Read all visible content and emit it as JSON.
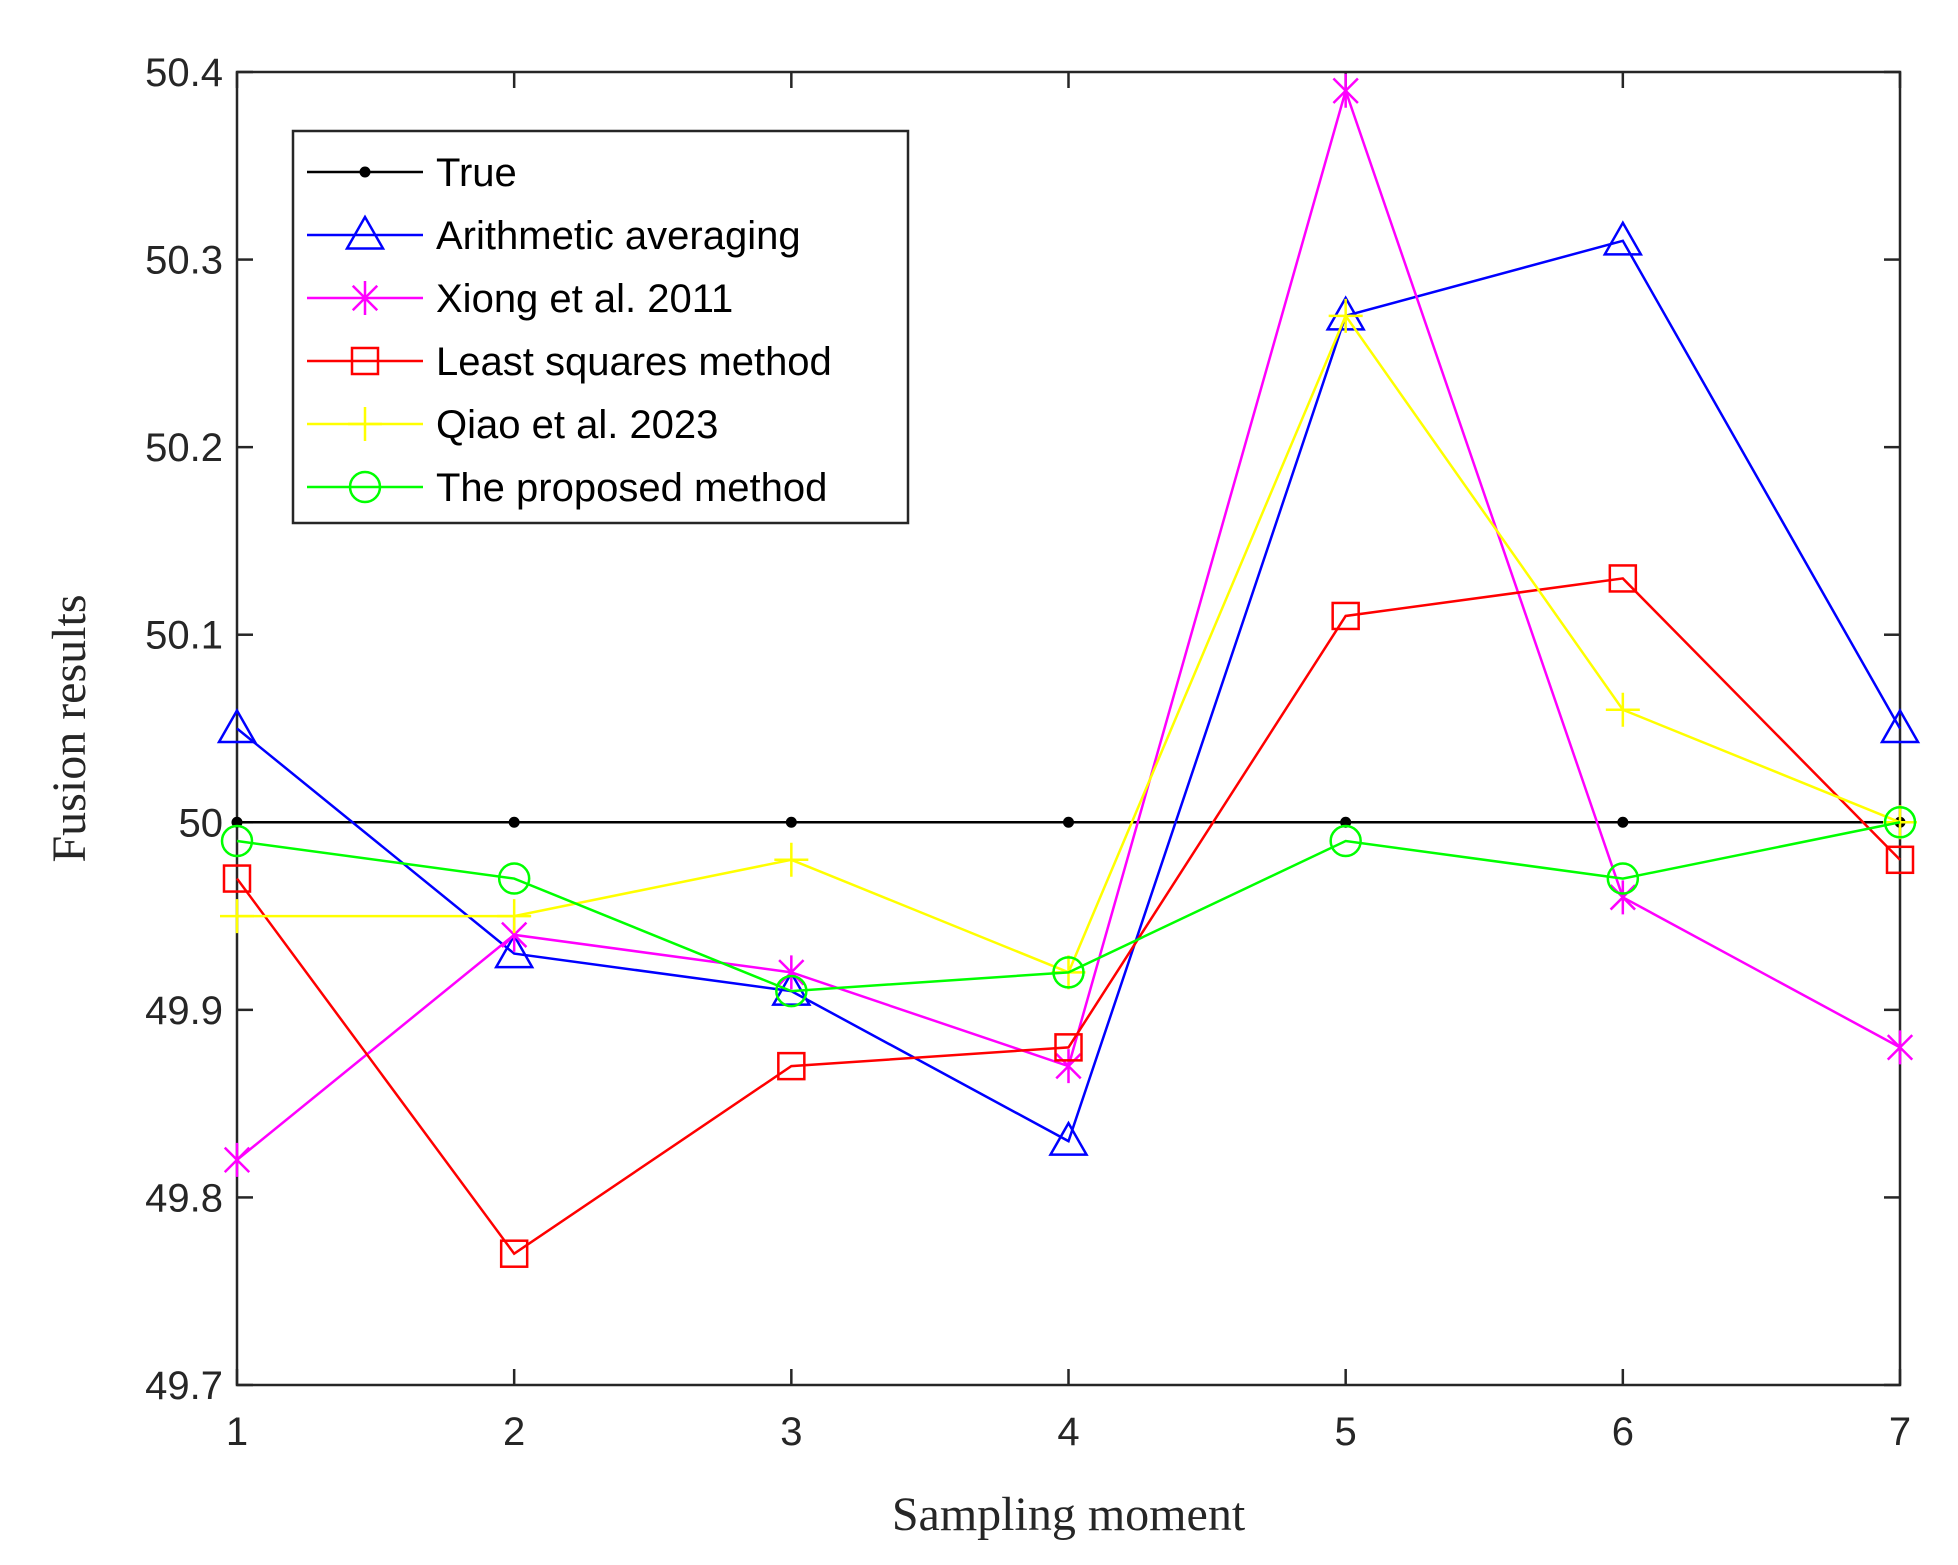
{
  "chart_data": {
    "type": "line",
    "title": "",
    "xlabel": "Sampling moment",
    "ylabel": "Fusion results",
    "x": [
      1,
      2,
      3,
      4,
      5,
      6,
      7
    ],
    "xlim": [
      1,
      7
    ],
    "ylim": [
      49.7,
      50.4
    ],
    "xticks": [
      "1",
      "2",
      "3",
      "4",
      "5",
      "6",
      "7"
    ],
    "yticks": [
      "49.7",
      "49.8",
      "49.9",
      "50",
      "50.1",
      "50.2",
      "50.3",
      "50.4"
    ],
    "grid": false,
    "legend_position": "top-left",
    "series": [
      {
        "name": "True",
        "color": "#000000",
        "marker": "dot",
        "values": [
          50,
          50,
          50,
          50,
          50,
          50,
          50
        ]
      },
      {
        "name": "Arithmetic averaging",
        "color": "#0000ff",
        "marker": "triangle",
        "values": [
          50.05,
          49.93,
          49.91,
          49.83,
          50.27,
          50.31,
          50.05
        ]
      },
      {
        "name": "Xiong et al. 2011",
        "color": "#ff00ff",
        "marker": "asterisk",
        "values": [
          49.82,
          49.94,
          49.92,
          49.87,
          50.39,
          49.96,
          49.88
        ]
      },
      {
        "name": "Least squares method",
        "color": "#ff0000",
        "marker": "square",
        "values": [
          49.97,
          49.77,
          49.87,
          49.88,
          50.11,
          50.13,
          49.98
        ]
      },
      {
        "name": "Qiao et al. 2023",
        "color": "#ffff00",
        "marker": "plus",
        "values": [
          49.95,
          49.95,
          49.98,
          49.92,
          50.27,
          50.06,
          50.0
        ]
      },
      {
        "name": "The proposed method",
        "color": "#00ff00",
        "marker": "circle",
        "values": [
          49.99,
          49.97,
          49.91,
          49.92,
          49.99,
          49.97,
          50.0
        ]
      }
    ]
  }
}
